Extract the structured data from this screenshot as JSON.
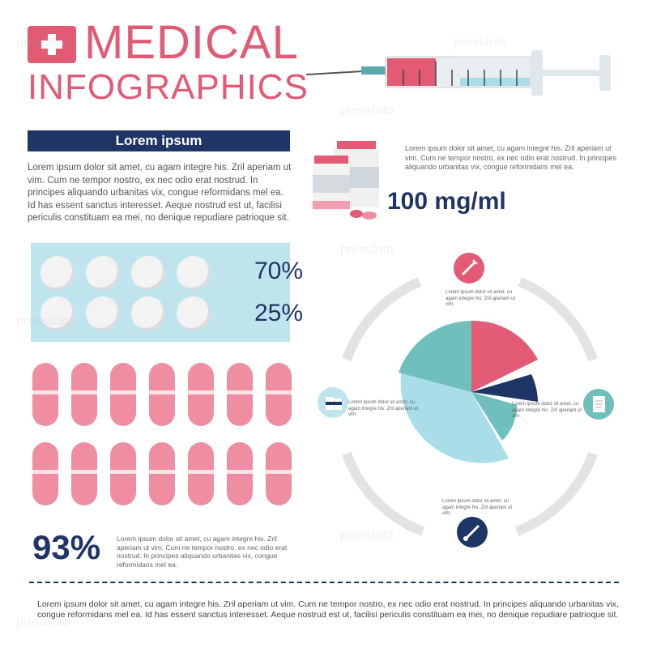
{
  "header": {
    "title_line1": "MEDICAL",
    "title_line2": "INFOGRAPHICS"
  },
  "banner": {
    "label": "Lorem ipsum"
  },
  "intro_text": "Lorem ipsum dolor sit amet, cu agam integre his. Zril aperiam ut vim. Cum ne tempor nostro, ex nec odio erat nostrud. In principes aliquando urbanitas vix, congue reformidans mel ea. Id has essent sanctus interesset. Aeque nostrud est ut, facilisi periculis constituam ea mei, no denique repudiare patrioque sit.",
  "drug_text": "Lorem ipsum dolor sit amet, cu agam integre his. Zril aperiam ut vim. Cum ne tempor nostro, ex nec odio erat nostrud. In principes aliquando urbanitas vix, congue reformidans mel ea.",
  "dose_label": "100 mg/ml",
  "blister": {
    "pct_top": "70%",
    "pct_bottom": "25%"
  },
  "big_stat": {
    "value": "93%",
    "note": "Lorem ipsum dolor sit amet, cu agam integre his. Zril aperiam ut vim. Cum ne tempor nostro, ex nec odio erat nostrud. In principes aliquando urbanitas vix, congue reformidans mel ea."
  },
  "chart_notes": {
    "top": "Lorem ipsum dolor sit amet, cu agam integre his. Zril aperiam ut vim.",
    "left": "Lorem ipsum dolor sit amet, cu agam integre his. Zril aperiam ut vim.",
    "right": "Lorem ipsum dolor sit amet, cu agam integre his. Zril aperiam ut vim.",
    "bottom": "Lorem ipsum dolor sit amet, cu agam integre his. Zril aperiam ut vim."
  },
  "footer_text": "Lorem ipsum dolor sit amet, cu agam integre his. Zril aperiam ut vim. Cum ne tempor nostro, ex nec odio erat nostrud. In principes aliquando urbanitas vix, congue reformidans mel ea. Id has essent sanctus interesset. Aeque nostrud est ut, facilisi periculis constituam ea mei, no denique repudiare patrioque sit.",
  "watermark": "pressfoto",
  "colors": {
    "pink": "#e25a74",
    "navy": "#1f3566",
    "teal": "#6fc0bd",
    "light_blue": "#a9dde8",
    "capsule": "#ef8ea0"
  },
  "icons": [
    "cross-icon",
    "syringe-icon",
    "pill-bottle-icon",
    "thermometer-icon",
    "medical-chart-icon"
  ]
}
